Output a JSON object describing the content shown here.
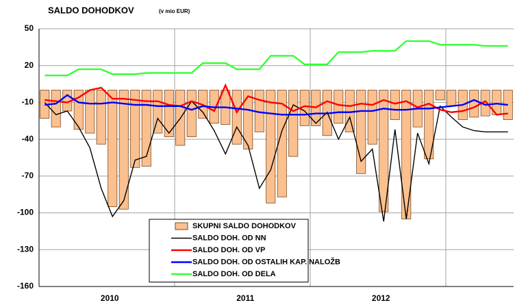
{
  "chart_data": {
    "type": "bar",
    "title": "SALDO DOHODKOV",
    "subtitle": "(v mio EUR)",
    "categories": [
      null,
      null,
      null,
      null,
      null,
      null,
      "2010",
      null,
      null,
      null,
      null,
      null,
      null,
      null,
      null,
      null,
      null,
      null,
      "2011",
      null,
      null,
      null,
      null,
      null,
      null,
      null,
      null,
      null,
      null,
      null,
      "2012",
      null,
      null,
      null,
      null,
      null,
      null,
      null,
      null,
      null,
      null,
      null
    ],
    "ylim": [
      -160,
      50
    ],
    "yticks": [
      -160,
      -130,
      -100,
      -70,
      -40,
      -10,
      20,
      50
    ],
    "grid": true,
    "legend": "lower center",
    "series": [
      {
        "name": "SKUPNI SALDO DOHODKOV",
        "type": "bar",
        "color": "#fbc08f",
        "values": [
          -23,
          -30,
          -17,
          -32,
          -35,
          -44,
          -95,
          -97,
          -63,
          -62,
          -35,
          -38,
          -45,
          -38,
          -23,
          -27,
          -28,
          -44,
          -48,
          -34,
          -92,
          -87,
          -54,
          -29,
          -29,
          -37,
          -27,
          -34,
          -68,
          -44,
          -99,
          -24,
          -105,
          -30,
          -56,
          -8,
          -13,
          -24,
          -22,
          -21,
          -20,
          -24
        ]
      },
      {
        "name": "SALDO DOH. OD NN",
        "type": "line",
        "color": "#000000",
        "values": [
          -10,
          -20,
          -17,
          -30,
          -47,
          -80,
          -103,
          -90,
          -57,
          -54,
          -23,
          -35,
          -23,
          -9,
          -18,
          -33,
          -52,
          -30,
          -45,
          -80,
          -65,
          -33,
          -12,
          -17,
          -27,
          -18,
          -40,
          -22,
          -58,
          -48,
          -107,
          -32,
          -105,
          -35,
          -60,
          -13,
          -22,
          -30,
          -33,
          -34,
          -34,
          -34
        ]
      },
      {
        "name": "SALDO DOH. OD VP",
        "type": "line",
        "color": "#ff0000",
        "values": [
          -8,
          -9,
          -10,
          -6,
          0,
          2,
          -7,
          -7,
          -8,
          -9,
          -9,
          -12,
          -13,
          -9,
          -12,
          -17,
          4,
          -18,
          -5,
          -8,
          -10,
          -11,
          -17,
          -13,
          -14,
          -9,
          -12,
          -13,
          -11,
          -12,
          -8,
          -11,
          -9,
          -14,
          -11,
          -16,
          -18,
          -17,
          -14,
          -9,
          -20,
          -19
        ]
      },
      {
        "name": "SALDO DOH. OD OSTALIH KAP. NALOŽB",
        "type": "line",
        "color": "#0000ff",
        "values": [
          -12,
          -11,
          -4,
          -10,
          -11,
          -11,
          -10,
          -11,
          -12,
          -12,
          -13,
          -13,
          -13,
          -16,
          -13,
          -14,
          -14,
          -15,
          -16,
          -18,
          -19,
          -20,
          -20,
          -20,
          -19,
          -19,
          -18,
          -18,
          -17,
          -17,
          -15,
          -16,
          -16,
          -15,
          -15,
          -14,
          -13,
          -12,
          -8,
          -12,
          -11,
          -12
        ]
      },
      {
        "name": "SALDO DOH. OD DELA",
        "type": "line",
        "color": "#33ff33",
        "values": [
          12,
          12,
          12,
          17,
          17,
          17,
          13,
          13,
          13,
          14,
          14,
          14,
          14,
          14,
          22,
          22,
          22,
          17,
          17,
          17,
          28,
          28,
          28,
          21,
          21,
          21,
          31,
          31,
          31,
          32,
          32,
          32,
          40,
          40,
          40,
          37,
          37,
          37,
          37,
          36,
          36,
          36
        ]
      }
    ]
  }
}
